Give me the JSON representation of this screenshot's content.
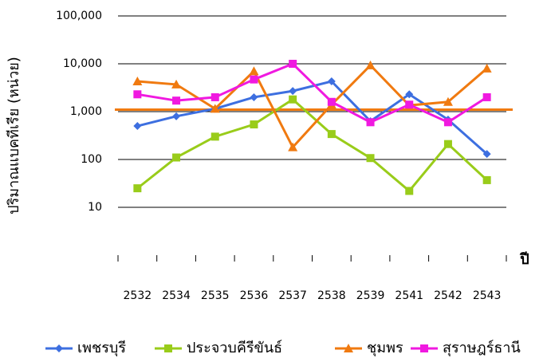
{
  "chart_data": {
    "type": "line",
    "y_label": "ปริมาณแบคทีเรีย (หน่วย)",
    "x_label": "ปี",
    "categories": [
      "2532",
      "2534",
      "2535",
      "2536",
      "2537",
      "2538",
      "2539",
      "2541",
      "2542",
      "2543"
    ],
    "log_scale": true,
    "grid": true,
    "legend": "bottom",
    "ylim": [
      1,
      100000
    ],
    "yticks": [
      10,
      100,
      {
        "value": 1000,
        "label": "1,000"
      },
      {
        "value": 10000,
        "label": "10,000"
      },
      {
        "value": 100000,
        "label": "100,000"
      }
    ],
    "reference_line": {
      "value": 1100,
      "color": "#f07a10"
    },
    "series": [
      {
        "name": "เพชรบุรี",
        "color": "#3d6fe0",
        "marker": "diamond",
        "values": [
          500,
          800,
          1150,
          2000,
          2700,
          4300,
          630,
          2300,
          680,
          130
        ]
      },
      {
        "name": "ประจวบคีรีขันธ์",
        "color": "#99cc1a",
        "marker": "square",
        "values": [
          25,
          110,
          300,
          540,
          1800,
          340,
          107,
          22,
          210,
          37
        ]
      },
      {
        "name": "ชุมพร",
        "color": "#f07a10",
        "marker": "triangle",
        "values": [
          4300,
          3700,
          1150,
          7000,
          180,
          1400,
          9300,
          1350,
          1600,
          8000
        ]
      },
      {
        "name": "สุราษฎร์ธานี",
        "color": "#f019e0",
        "marker": "square",
        "values": [
          2300,
          1700,
          2000,
          4700,
          10000,
          1600,
          600,
          1400,
          600,
          2000
        ]
      }
    ]
  }
}
